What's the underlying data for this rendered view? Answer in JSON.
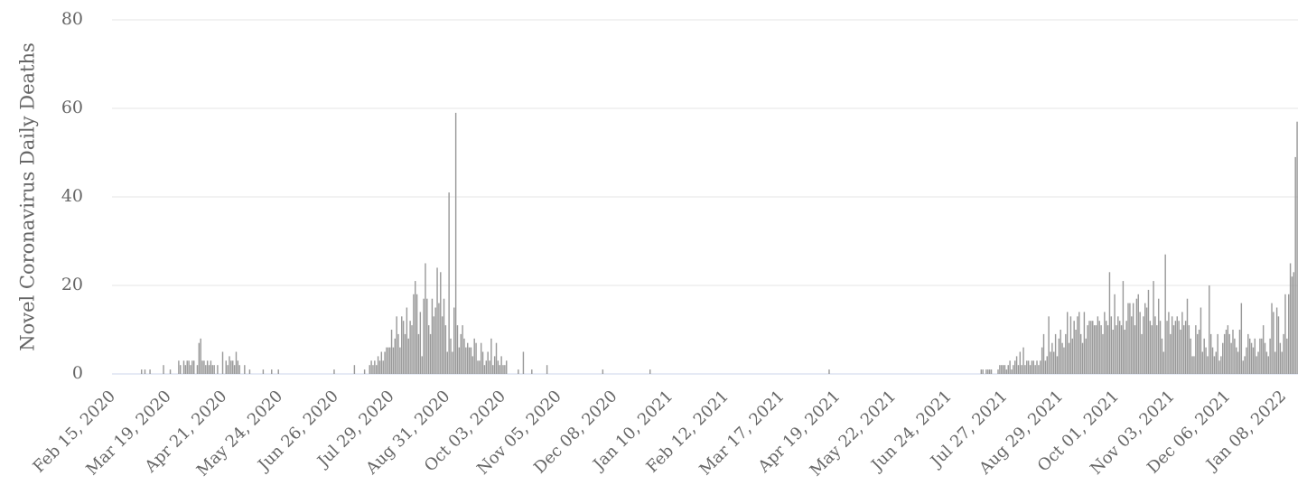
{
  "chart_data": {
    "type": "bar",
    "y_label": "Novel Coronavirus Daily Deaths",
    "color": "#999999",
    "ylim": [
      0,
      80
    ],
    "yticks": [
      0,
      20,
      40,
      60,
      80
    ],
    "grid": true,
    "categories": [
      "Feb 15, 2020",
      null,
      null,
      null,
      null,
      null,
      null,
      null,
      null,
      null,
      null,
      null,
      null,
      null,
      null,
      null,
      null,
      null,
      null,
      null,
      null,
      null,
      null,
      null,
      null,
      null,
      null,
      null,
      null,
      null,
      null,
      null,
      null,
      "Mar 19, 2020",
      null,
      null,
      null,
      null,
      null,
      null,
      null,
      null,
      null,
      null,
      null,
      null,
      null,
      null,
      null,
      null,
      null,
      null,
      null,
      null,
      null,
      null,
      null,
      null,
      null,
      null,
      null,
      null,
      null,
      null,
      null,
      null,
      "Apr 21, 2020",
      null,
      null,
      null,
      null,
      null,
      null,
      null,
      null,
      null,
      null,
      null,
      null,
      null,
      null,
      null,
      null,
      null,
      null,
      null,
      null,
      null,
      null,
      null,
      null,
      null,
      null,
      null,
      null,
      null,
      null,
      null,
      null,
      "May 24, 2020",
      null,
      null,
      null,
      null,
      null,
      null,
      null,
      null,
      null,
      null,
      null,
      null,
      null,
      null,
      null,
      null,
      null,
      null,
      null,
      null,
      null,
      null,
      null,
      null,
      null,
      null,
      null,
      null,
      null,
      null,
      null,
      null,
      "Jun 26, 2020",
      null,
      null,
      null,
      null,
      null,
      null,
      null,
      null,
      null,
      null,
      null,
      null,
      null,
      null,
      null,
      null,
      null,
      null,
      null,
      null,
      null,
      null,
      null,
      null,
      null,
      null,
      null,
      null,
      null,
      null,
      null,
      null,
      "Jul 29, 2020",
      null,
      null,
      null,
      null,
      null,
      null,
      null,
      null,
      null,
      null,
      null,
      null,
      null,
      null,
      null,
      null,
      null,
      null,
      null,
      null,
      null,
      null,
      null,
      null,
      null,
      null,
      null,
      null,
      null,
      null,
      null,
      null,
      "Aug 31, 2020",
      null,
      null,
      null,
      null,
      null,
      null,
      null,
      null,
      null,
      null,
      null,
      null,
      null,
      null,
      null,
      null,
      null,
      null,
      null,
      null,
      null,
      null,
      null,
      null,
      null,
      null,
      null,
      null,
      null,
      null,
      null,
      null,
      "Oct 03, 2020",
      null,
      null,
      null,
      null,
      null,
      null,
      null,
      null,
      null,
      null,
      null,
      null,
      null,
      null,
      null,
      null,
      null,
      null,
      null,
      null,
      null,
      null,
      null,
      null,
      null,
      null,
      null,
      null,
      null,
      null,
      null,
      null,
      "Nov 05, 2020",
      null,
      null,
      null,
      null,
      null,
      null,
      null,
      null,
      null,
      null,
      null,
      null,
      null,
      null,
      null,
      null,
      null,
      null,
      null,
      null,
      null,
      null,
      null,
      null,
      null,
      null,
      null,
      null,
      null,
      null,
      null,
      null,
      "Dec 08, 2020",
      null,
      null,
      null,
      null,
      null,
      null,
      null,
      null,
      null,
      null,
      null,
      null,
      null,
      null,
      null,
      null,
      null,
      null,
      null,
      null,
      null,
      null,
      null,
      null,
      null,
      null,
      null,
      null,
      null,
      null,
      null,
      null,
      "Jan 10, 2021",
      null,
      null,
      null,
      null,
      null,
      null,
      null,
      null,
      null,
      null,
      null,
      null,
      null,
      null,
      null,
      null,
      null,
      null,
      null,
      null,
      null,
      null,
      null,
      null,
      null,
      null,
      null,
      null,
      null,
      null,
      null,
      null,
      "Feb 12, 2021",
      null,
      null,
      null,
      null,
      null,
      null,
      null,
      null,
      null,
      null,
      null,
      null,
      null,
      null,
      null,
      null,
      null,
      null,
      null,
      null,
      null,
      null,
      null,
      null,
      null,
      null,
      null,
      null,
      null,
      null,
      null,
      null,
      "Mar 17, 2021",
      null,
      null,
      null,
      null,
      null,
      null,
      null,
      null,
      null,
      null,
      null,
      null,
      null,
      null,
      null,
      null,
      null,
      null,
      null,
      null,
      null,
      null,
      null,
      null,
      null,
      null,
      null,
      null,
      null,
      null,
      null,
      null,
      "Apr 19, 2021",
      null,
      null,
      null,
      null,
      null,
      null,
      null,
      null,
      null,
      null,
      null,
      null,
      null,
      null,
      null,
      null,
      null,
      null,
      null,
      null,
      null,
      null,
      null,
      null,
      null,
      null,
      null,
      null,
      null,
      null,
      null,
      null,
      "May 22, 2021",
      null,
      null,
      null,
      null,
      null,
      null,
      null,
      null,
      null,
      null,
      null,
      null,
      null,
      null,
      null,
      null,
      null,
      null,
      null,
      null,
      null,
      null,
      null,
      null,
      null,
      null,
      null,
      null,
      null,
      null,
      null,
      null,
      "Jun 24, 2021",
      null,
      null,
      null,
      null,
      null,
      null,
      null,
      null,
      null,
      null,
      null,
      null,
      null,
      null,
      null,
      null,
      null,
      null,
      null,
      null,
      null,
      null,
      null,
      null,
      null,
      null,
      null,
      null,
      null,
      null,
      null,
      null,
      "Jul 27, 2021",
      null,
      null,
      null,
      null,
      null,
      null,
      null,
      null,
      null,
      null,
      null,
      null,
      null,
      null,
      null,
      null,
      null,
      null,
      null,
      null,
      null,
      null,
      null,
      null,
      null,
      null,
      null,
      null,
      null,
      null,
      null,
      null,
      "Aug 29, 2021",
      null,
      null,
      null,
      null,
      null,
      null,
      null,
      null,
      null,
      null,
      null,
      null,
      null,
      null,
      null,
      null,
      null,
      null,
      null,
      null,
      null,
      null,
      null,
      null,
      null,
      null,
      null,
      null,
      null,
      null,
      null,
      null,
      "Oct 01, 2021",
      null,
      null,
      null,
      null,
      null,
      null,
      null,
      null,
      null,
      null,
      null,
      null,
      null,
      null,
      null,
      null,
      null,
      null,
      null,
      null,
      null,
      null,
      null,
      null,
      null,
      null,
      null,
      null,
      null,
      null,
      null,
      null,
      "Nov 03, 2021",
      null,
      null,
      null,
      null,
      null,
      null,
      null,
      null,
      null,
      null,
      null,
      null,
      null,
      null,
      null,
      null,
      null,
      null,
      null,
      null,
      null,
      null,
      null,
      null,
      null,
      null,
      null,
      null,
      null,
      null,
      null,
      null,
      "Dec 06, 2021",
      null,
      null,
      null,
      null,
      null,
      null,
      null,
      null,
      null,
      null,
      null,
      null,
      null,
      null,
      null,
      null,
      null,
      null,
      null,
      null,
      null,
      null,
      null,
      null,
      null,
      null,
      null,
      null,
      null,
      null,
      null,
      null,
      "Jan 08, 2022",
      null,
      null,
      null,
      null,
      null,
      null,
      null,
      null
    ],
    "values": [
      0,
      0,
      0,
      0,
      0,
      0,
      0,
      0,
      0,
      0,
      0,
      0,
      0,
      0,
      0,
      0,
      0,
      1,
      0,
      1,
      0,
      0,
      1,
      0,
      0,
      0,
      0,
      0,
      0,
      0,
      2,
      0,
      0,
      0,
      1,
      0,
      0,
      0,
      0,
      3,
      2,
      0,
      3,
      2,
      3,
      3,
      2,
      3,
      3,
      0,
      2,
      7,
      8,
      3,
      3,
      2,
      3,
      2,
      3,
      2,
      2,
      0,
      2,
      0,
      0,
      5,
      0,
      3,
      2,
      4,
      3,
      3,
      2,
      5,
      3,
      2,
      0,
      0,
      2,
      0,
      0,
      1,
      0,
      0,
      0,
      0,
      0,
      0,
      0,
      1,
      0,
      0,
      0,
      0,
      1,
      0,
      0,
      0,
      1,
      0,
      0,
      0,
      0,
      0,
      0,
      0,
      0,
      0,
      0,
      0,
      0,
      0,
      0,
      0,
      0,
      0,
      0,
      0,
      0,
      0,
      0,
      0,
      0,
      0,
      0,
      0,
      0,
      0,
      0,
      0,
      0,
      1,
      0,
      0,
      0,
      0,
      0,
      0,
      0,
      0,
      0,
      0,
      0,
      2,
      0,
      0,
      0,
      0,
      0,
      1,
      0,
      0,
      2,
      3,
      2,
      3,
      2,
      4,
      3,
      5,
      3,
      5,
      6,
      6,
      6,
      10,
      6,
      8,
      13,
      9,
      6,
      13,
      12,
      9,
      15,
      8,
      12,
      11,
      18,
      21,
      18,
      9,
      14,
      4,
      17,
      25,
      17,
      11,
      9,
      17,
      13,
      15,
      24,
      16,
      23,
      13,
      17,
      11,
      5,
      41,
      8,
      5,
      15,
      59,
      11,
      6,
      9,
      11,
      8,
      6,
      7,
      6,
      6,
      4,
      8,
      7,
      3,
      3,
      7,
      5,
      2,
      3,
      5,
      3,
      8,
      2,
      4,
      7,
      3,
      2,
      4,
      2,
      2,
      3,
      0,
      0,
      0,
      0,
      0,
      0,
      1,
      0,
      0,
      5,
      0,
      0,
      0,
      0,
      1,
      0,
      0,
      0,
      0,
      0,
      0,
      0,
      0,
      2,
      0,
      0,
      0,
      0,
      0,
      0,
      0,
      0,
      0,
      0,
      0,
      0,
      0,
      0,
      0,
      0,
      0,
      0,
      0,
      0,
      0,
      0,
      0,
      0,
      0,
      0,
      0,
      0,
      0,
      0,
      0,
      0,
      1,
      0,
      0,
      0,
      0,
      0,
      0,
      0,
      0,
      0,
      0,
      0,
      0,
      0,
      0,
      0,
      0,
      0,
      0,
      0,
      0,
      0,
      0,
      0,
      0,
      0,
      0,
      0,
      1,
      0,
      0,
      0,
      0,
      0,
      0,
      0,
      0,
      0,
      0,
      0,
      0,
      0,
      0,
      0,
      0,
      0,
      0,
      0,
      0,
      0,
      0,
      0,
      0,
      0,
      0,
      0,
      0,
      0,
      0,
      0,
      0,
      0,
      0,
      0,
      0,
      0,
      0,
      0,
      0,
      0,
      0,
      0,
      0,
      0,
      0,
      0,
      0,
      0,
      0,
      0,
      0,
      0,
      0,
      0,
      0,
      0,
      0,
      0,
      0,
      0,
      0,
      0,
      0,
      0,
      0,
      0,
      0,
      0,
      0,
      0,
      0,
      0,
      0,
      0,
      0,
      0,
      0,
      0,
      0,
      0,
      0,
      0,
      0,
      0,
      0,
      0,
      0,
      0,
      0,
      0,
      0,
      0,
      0,
      0,
      0,
      0,
      0,
      0,
      0,
      0,
      0,
      0,
      0,
      0,
      1,
      0,
      0,
      0,
      0,
      0,
      0,
      0,
      0,
      0,
      0,
      0,
      0,
      0,
      0,
      0,
      0,
      0,
      0,
      0,
      0,
      0,
      0,
      0,
      0,
      0,
      0,
      0,
      0,
      0,
      0,
      0,
      0,
      0,
      0,
      0,
      0,
      0,
      0,
      0,
      0,
      0,
      0,
      0,
      0,
      0,
      0,
      0,
      0,
      0,
      0,
      0,
      0,
      0,
      0,
      0,
      0,
      0,
      0,
      0,
      0,
      0,
      0,
      0,
      0,
      0,
      0,
      0,
      0,
      0,
      0,
      0,
      0,
      0,
      0,
      0,
      0,
      0,
      0,
      0,
      0,
      0,
      0,
      0,
      0,
      0,
      0,
      0,
      0,
      0,
      1,
      1,
      0,
      1,
      1,
      1,
      1,
      0,
      0,
      0,
      1,
      2,
      2,
      2,
      2,
      1,
      2,
      3,
      1,
      2,
      3,
      4,
      2,
      5,
      2,
      6,
      2,
      3,
      3,
      2,
      3,
      3,
      2,
      3,
      2,
      3,
      6,
      9,
      3,
      4,
      13,
      5,
      7,
      5,
      9,
      4,
      8,
      10,
      7,
      6,
      9,
      14,
      7,
      13,
      8,
      12,
      10,
      13,
      14,
      9,
      7,
      14,
      8,
      11,
      12,
      12,
      12,
      11,
      11,
      13,
      12,
      11,
      9,
      14,
      12,
      11,
      23,
      13,
      10,
      18,
      11,
      13,
      12,
      11,
      21,
      10,
      12,
      16,
      16,
      13,
      16,
      11,
      17,
      18,
      14,
      9,
      13,
      16,
      15,
      19,
      12,
      11,
      21,
      13,
      11,
      17,
      12,
      8,
      5,
      27,
      12,
      14,
      9,
      13,
      11,
      12,
      13,
      12,
      10,
      14,
      11,
      12,
      17,
      11,
      8,
      4,
      4,
      11,
      9,
      10,
      15,
      5,
      8,
      6,
      4,
      20,
      9,
      6,
      4,
      5,
      9,
      3,
      4,
      7,
      9,
      10,
      11,
      9,
      7,
      10,
      8,
      6,
      5,
      10,
      16,
      3,
      4,
      6,
      9,
      8,
      7,
      6,
      8,
      4,
      5,
      8,
      8,
      11,
      7,
      5,
      4,
      8,
      16,
      14,
      5,
      15,
      13,
      7,
      5,
      9,
      18,
      8,
      18,
      25,
      22,
      23,
      49,
      57
    ]
  }
}
